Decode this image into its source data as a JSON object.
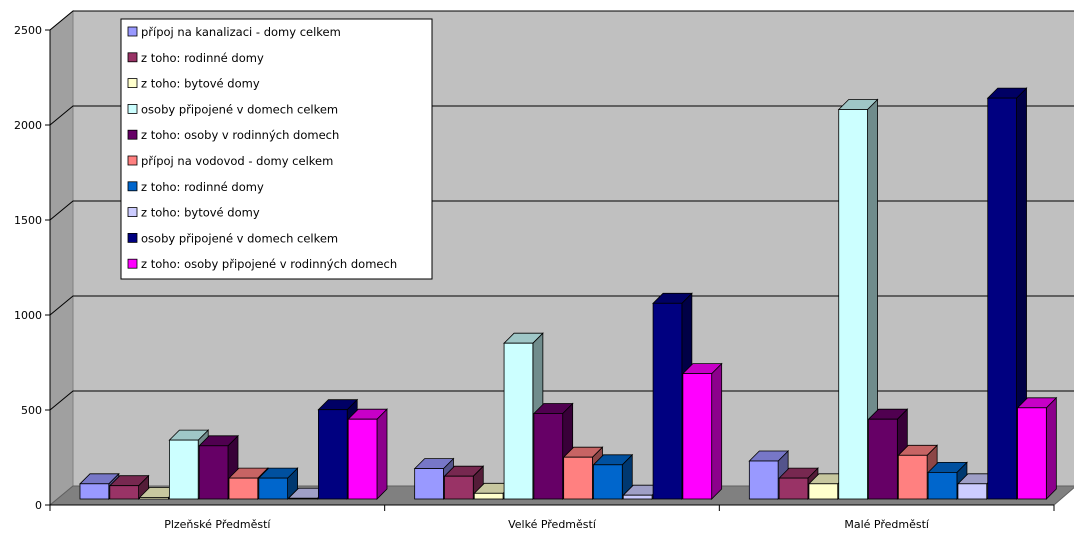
{
  "chart_data": {
    "type": "bar",
    "categories": [
      "Plzeňské Předměstí",
      "Velké Předměstí",
      "Malé Předměstí"
    ],
    "ylim": [
      0,
      2500
    ],
    "yticks": [
      0,
      500,
      1000,
      1500,
      2000,
      2500
    ],
    "grid": true,
    "legend_position": "top-left",
    "series": [
      {
        "name": "přípoj na kanalizaci - domy celkem",
        "color": "#9999FF",
        "values": [
          80,
          160,
          200
        ]
      },
      {
        "name": "z toho: rodinné domy",
        "color": "#993366",
        "values": [
          70,
          120,
          110
        ]
      },
      {
        "name": "z toho: bytové domy",
        "color": "#FFFFCC",
        "values": [
          8,
          30,
          80
        ]
      },
      {
        "name": "osoby připojené v domech celkem",
        "color": "#CCFFFF",
        "values": [
          310,
          820,
          2050
        ]
      },
      {
        "name": "z toho: osoby v rodinných domech",
        "color": "#660066",
        "values": [
          280,
          450,
          420
        ]
      },
      {
        "name": "přípoj na vodovod - domy celkem",
        "color": "#FF8080",
        "values": [
          110,
          220,
          230
        ]
      },
      {
        "name": "z toho: rodinné domy",
        "color": "#0066CC",
        "values": [
          110,
          180,
          140
        ]
      },
      {
        "name": "z toho: bytové domy",
        "color": "#CCCCFF",
        "values": [
          4,
          20,
          80
        ]
      },
      {
        "name": "osoby připojené v domech celkem",
        "color": "#000080",
        "values": [
          470,
          1030,
          2110
        ]
      },
      {
        "name": "z toho: osoby připojené v rodinných domech",
        "color": "#FF00FF",
        "values": [
          420,
          660,
          480
        ]
      }
    ]
  }
}
